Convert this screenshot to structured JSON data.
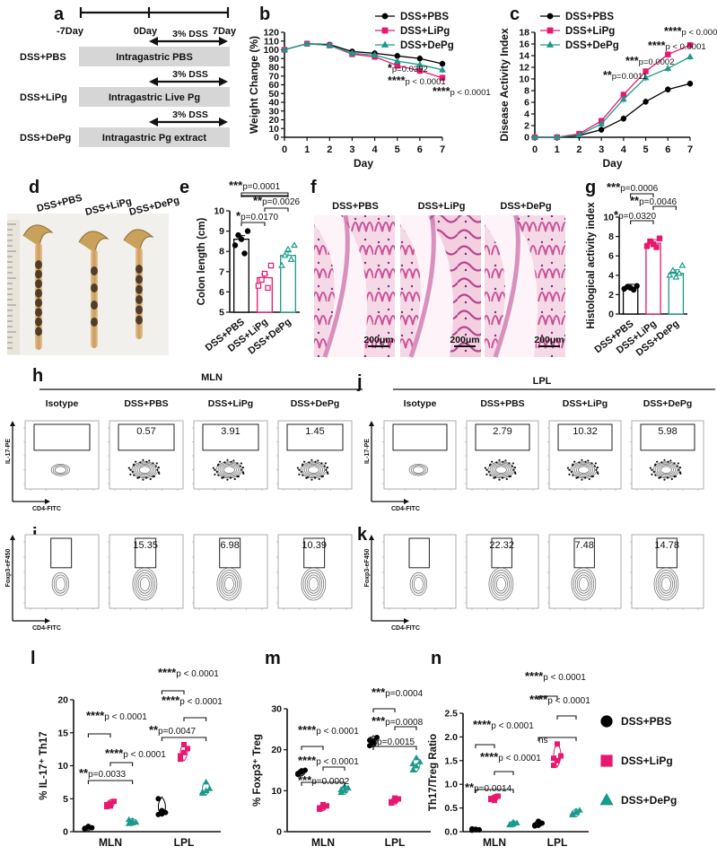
{
  "panels": {
    "a": {
      "letter": "a",
      "timeline": [
        "-7Day",
        "0Day",
        "7Day"
      ],
      "dss_label": "3% DSS",
      "groups": [
        {
          "name": "DSS+PBS",
          "treatment": "Intragastric PBS"
        },
        {
          "name": "DSS+LiPg",
          "treatment": "Intragastric Live Pg"
        },
        {
          "name": "DSS+DePg",
          "treatment": "Intragastric Pg extract"
        }
      ]
    },
    "b": {
      "letter": "b"
    },
    "c": {
      "letter": "c"
    },
    "d": {
      "letter": "d",
      "groups": [
        "DSS+PBS",
        "DSS+LiPg",
        "DSS+DePg"
      ]
    },
    "e": {
      "letter": "e"
    },
    "f": {
      "letter": "f",
      "groups": [
        "DSS+PBS",
        "DSS+LiPg",
        "DSS+DePg"
      ],
      "scale": "200μm"
    },
    "g": {
      "letter": "g"
    },
    "h": {
      "letter": "h",
      "tissue": "MLN",
      "headers": [
        "Isotype",
        "DSS+PBS",
        "DSS+LiPg",
        "DSS+DePg"
      ],
      "values": [
        "",
        "0.57",
        "3.91",
        "1.45"
      ],
      "ylabel": "IL-17-PE",
      "xlabel": "CD4-FITC"
    },
    "j": {
      "letter": "j",
      "tissue": "LPL",
      "headers": [
        "Isotype",
        "DSS+PBS",
        "DSS+LiPg",
        "DSS+DePg"
      ],
      "values": [
        "",
        "2.79",
        "10.32",
        "5.98"
      ],
      "ylabel": "IL-17-PE",
      "xlabel": "CD4-FITC"
    },
    "i": {
      "letter": "i",
      "values": [
        "",
        "15.35",
        "6.98",
        "10.39"
      ],
      "ylabel": "Foxp3-eF450",
      "xlabel": "CD4-FITC"
    },
    "k": {
      "letter": "k",
      "values": [
        "",
        "22.32",
        "7.48",
        "14.78"
      ],
      "ylabel": "Foxp3-eF450",
      "xlabel": "CD4-FITC"
    },
    "l": {
      "letter": "l"
    },
    "m": {
      "letter": "m"
    },
    "n": {
      "letter": "n"
    }
  },
  "legend": {
    "items": [
      {
        "name": "DSS+PBS",
        "color": "#000000",
        "shape": "circle"
      },
      {
        "name": "DSS+LiPg",
        "color": "#e8186f",
        "shape": "square"
      },
      {
        "name": "DSS+DePg",
        "color": "#1a9a8a",
        "shape": "triangle"
      }
    ]
  },
  "chart_data": [
    {
      "id": "b",
      "type": "line",
      "ylabel": "Weight Change (%)",
      "xlabel": "Day",
      "x": [
        0,
        1,
        2,
        3,
        4,
        5,
        6,
        7
      ],
      "xlim": [
        0,
        7
      ],
      "ylim": [
        0,
        120
      ],
      "yticks": [
        0,
        10,
        20,
        30,
        40,
        50,
        60,
        70,
        80,
        90,
        100,
        110,
        120
      ],
      "series": [
        {
          "name": "DSS+PBS",
          "color": "#000000",
          "values": [
            100,
            107,
            106,
            98,
            96,
            93,
            90,
            84
          ]
        },
        {
          "name": "DSS+LiPg",
          "color": "#e8186f",
          "values": [
            100,
            107,
            105,
            95,
            92,
            82,
            76,
            68
          ]
        },
        {
          "name": "DSS+DePg",
          "color": "#1a9a8a",
          "values": [
            100,
            107,
            105,
            96,
            94,
            87,
            83,
            77
          ]
        }
      ],
      "annotations": [
        {
          "stars": "*",
          "text": "p=0.0392"
        },
        {
          "stars": "****",
          "text": "p < 0.0001"
        },
        {
          "stars": "****",
          "text": "p < 0.0001"
        }
      ]
    },
    {
      "id": "c",
      "type": "line",
      "ylabel": "Disease Activity Index",
      "xlabel": "Day",
      "x": [
        0,
        1,
        2,
        3,
        4,
        5,
        6,
        7
      ],
      "xlim": [
        0,
        7
      ],
      "ylim": [
        0,
        18
      ],
      "yticks": [
        0,
        2,
        4,
        6,
        8,
        10,
        12,
        14,
        16,
        18
      ],
      "series": [
        {
          "name": "DSS+PBS",
          "color": "#000000",
          "values": [
            0,
            0,
            0.3,
            1.3,
            3.2,
            6.1,
            8.2,
            9.2
          ]
        },
        {
          "name": "DSS+LiPg",
          "color": "#e8186f",
          "values": [
            0,
            0,
            0.6,
            2.8,
            7.3,
            11.3,
            14.2,
            15.8
          ]
        },
        {
          "name": "DSS+DePg",
          "color": "#1a9a8a",
          "values": [
            0,
            0,
            0.4,
            2.3,
            6.5,
            10.2,
            11.8,
            13.8
          ]
        }
      ],
      "annotations": [
        {
          "stars": "**",
          "text": "p=0.0011"
        },
        {
          "stars": "***",
          "text": "p=0.0002"
        },
        {
          "stars": "****",
          "text": "p < 0.0001"
        },
        {
          "stars": "****",
          "text": "p < 0.0001"
        }
      ]
    },
    {
      "id": "e",
      "type": "bar",
      "ylabel": "Colon length (cm)",
      "categories": [
        "DSS+PBS",
        "DSS+LiPg",
        "DSS+DePg"
      ],
      "values": [
        8.6,
        6.7,
        7.8
      ],
      "ylim": [
        5,
        10
      ],
      "yticks": [
        5,
        6,
        7,
        8,
        9,
        10
      ],
      "points": [
        [
          8.3,
          8.8,
          8.6,
          7.9,
          9.0
        ],
        [
          6.3,
          6.6,
          6.9,
          6.2,
          7.3
        ],
        [
          7.3,
          7.8,
          8.1,
          7.6,
          8.3
        ]
      ],
      "annotations": [
        {
          "stars": "***",
          "text": "p=0.0001"
        },
        {
          "stars": "**",
          "text": "p=0.0026"
        },
        {
          "stars": "*",
          "text": "p=0.0170"
        }
      ]
    },
    {
      "id": "g",
      "type": "bar",
      "ylabel": "Histological activity index",
      "categories": [
        "DSS+PBS",
        "DSS+LiPg",
        "DSS+DePg"
      ],
      "values": [
        2.7,
        7.3,
        4.2
      ],
      "ylim": [
        0,
        10
      ],
      "yticks": [
        0,
        2,
        4,
        6,
        8,
        10
      ],
      "points": [
        [
          2.6,
          2.8,
          2.7,
          2.5,
          2.9
        ],
        [
          7.0,
          7.5,
          7.2,
          6.9,
          7.8
        ],
        [
          4.0,
          4.5,
          3.8,
          4.2,
          5.0
        ]
      ],
      "annotations": [
        {
          "stars": "***",
          "text": "p=0.0006"
        },
        {
          "stars": "**",
          "text": "p=0.0046"
        },
        {
          "stars": "*",
          "text": "p=0.0320"
        }
      ]
    },
    {
      "id": "l",
      "type": "scatter",
      "ylabel": "% IL-17⁺ Th17",
      "categories": [
        "MLN",
        "LPL"
      ],
      "ylim": [
        0,
        20
      ],
      "yticks": [
        0,
        5,
        10,
        15,
        20
      ],
      "series": [
        {
          "name": "DSS+PBS",
          "color": "#000000",
          "values": [
            [
              0.5,
              0.8,
              0.6,
              0.4,
              0.7
            ],
            [
              2.6,
              3.2,
              2.9,
              5.0,
              2.7
            ]
          ]
        },
        {
          "name": "DSS+LiPg",
          "color": "#e8186f",
          "values": [
            [
              3.8,
              4.3,
              4.6,
              4.1,
              3.9
            ],
            [
              11.0,
              12.0,
              12.6,
              11.5,
              13.2
            ]
          ]
        },
        {
          "name": "DSS+DePg",
          "color": "#1a9a8a",
          "values": [
            [
              1.2,
              1.6,
              1.4,
              1.8,
              1.3
            ],
            [
              5.8,
              6.2,
              6.5,
              6.0,
              7.5
            ]
          ]
        }
      ],
      "annotations": [
        {
          "stars": "****",
          "text": "p < 0.0001"
        },
        {
          "stars": "****",
          "text": "p < 0.0001"
        },
        {
          "stars": "**",
          "text": "p=0.0033"
        },
        {
          "stars": "****",
          "text": "p < 0.0001"
        },
        {
          "stars": "****",
          "text": "p < 0.0001"
        },
        {
          "stars": "**",
          "text": "p=0.0047"
        }
      ]
    },
    {
      "id": "m",
      "type": "scatter",
      "ylabel": "% Foxp3⁺ Treg",
      "categories": [
        "MLN",
        "LPL"
      ],
      "ylim": [
        0,
        30
      ],
      "yticks": [
        0,
        10,
        20,
        30
      ],
      "series": [
        {
          "name": "DSS+PBS",
          "color": "#000000",
          "values": [
            [
              14.0,
              14.5,
              15.0,
              14.2,
              14.8
            ],
            [
              21.0,
              22.0,
              23.0,
              22.3,
              21.6
            ]
          ]
        },
        {
          "name": "DSS+LiPg",
          "color": "#e8186f",
          "values": [
            [
              5.5,
              6.0,
              6.3,
              5.8,
              6.6
            ],
            [
              7.0,
              7.5,
              8.0,
              7.3,
              8.2
            ]
          ]
        },
        {
          "name": "DSS+DePg",
          "color": "#1a9a8a",
          "values": [
            [
              9.5,
              10.0,
              10.6,
              10.2,
              11.0
            ],
            [
              15.0,
              16.0,
              17.0,
              16.5,
              18.0
            ]
          ]
        }
      ],
      "annotations": [
        {
          "stars": "****",
          "text": "p < 0.0001"
        },
        {
          "stars": "****",
          "text": "p < 0.0001"
        },
        {
          "stars": "***",
          "text": "p=0.0002"
        },
        {
          "stars": "***",
          "text": "p=0.0004"
        },
        {
          "stars": "***",
          "text": "p=0.0008"
        },
        {
          "stars": "**",
          "text": "p=0.0015"
        }
      ]
    },
    {
      "id": "n",
      "type": "scatter",
      "ylabel": "Th17/Treg Ratio",
      "categories": [
        "MLN",
        "LPL"
      ],
      "ylim": [
        0,
        2.5
      ],
      "yticks": [
        0.0,
        0.5,
        1.0,
        1.5,
        2.0,
        2.5
      ],
      "series": [
        {
          "name": "DSS+PBS",
          "color": "#000000",
          "values": [
            [
              0.03,
              0.05,
              0.04,
              0.06,
              0.05
            ],
            [
              0.12,
              0.15,
              0.18,
              0.14,
              0.22
            ]
          ]
        },
        {
          "name": "DSS+LiPg",
          "color": "#e8186f",
          "values": [
            [
              0.68,
              0.72,
              0.75,
              0.7,
              0.66
            ],
            [
              1.4,
              1.5,
              1.6,
              1.55,
              1.85
            ]
          ]
        },
        {
          "name": "DSS+DePg",
          "color": "#1a9a8a",
          "values": [
            [
              0.14,
              0.16,
              0.18,
              0.15,
              0.2
            ],
            [
              0.35,
              0.4,
              0.45,
              0.38,
              0.42
            ]
          ]
        }
      ],
      "annotations": [
        {
          "stars": "****",
          "text": "p < 0.0001"
        },
        {
          "stars": "****",
          "text": "p < 0.0001"
        },
        {
          "stars": "**",
          "text": "p=0.0014"
        },
        {
          "stars": "****",
          "text": "p < 0.0001"
        },
        {
          "stars": "****",
          "text": "p < 0.0001"
        },
        {
          "stars": "",
          "text": "ns"
        }
      ]
    }
  ]
}
